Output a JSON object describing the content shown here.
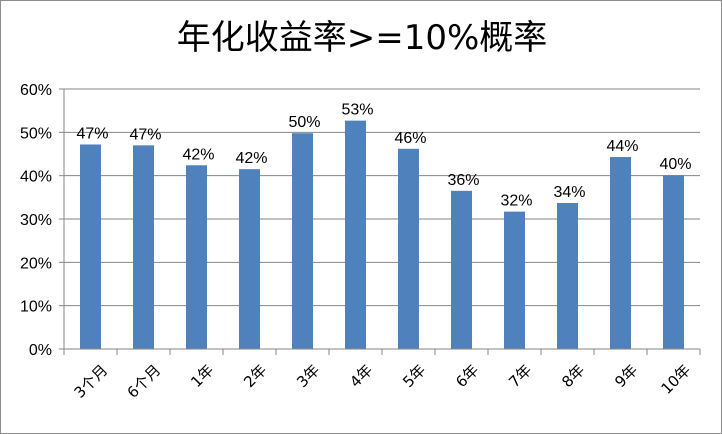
{
  "chart_data": {
    "type": "bar",
    "title": "年化收益率>=10%概率",
    "xlabel": "",
    "ylabel": "",
    "categories": [
      "3个月",
      "6个月",
      "1年",
      "2年",
      "3年",
      "4年",
      "5年",
      "6年",
      "7年",
      "8年",
      "9年",
      "10年"
    ],
    "values": [
      47,
      47,
      42,
      42,
      50,
      53,
      46,
      36,
      32,
      34,
      44,
      40
    ],
    "bar_heights": [
      47.2,
      47.0,
      42.4,
      41.5,
      49.8,
      52.7,
      46.2,
      36.5,
      31.7,
      33.7,
      44.3,
      40.1
    ],
    "data_labels": [
      "47%",
      "47%",
      "42%",
      "42%",
      "50%",
      "53%",
      "46%",
      "36%",
      "32%",
      "34%",
      "44%",
      "40%"
    ],
    "ylim": [
      0,
      60
    ],
    "yticks": [
      0,
      10,
      20,
      30,
      40,
      50,
      60
    ],
    "ytick_labels": [
      "0%",
      "10%",
      "20%",
      "30%",
      "40%",
      "50%",
      "60%"
    ],
    "grid": true,
    "legend": "none",
    "bar_color": "#4f81bd",
    "grid_color": "#868686"
  }
}
